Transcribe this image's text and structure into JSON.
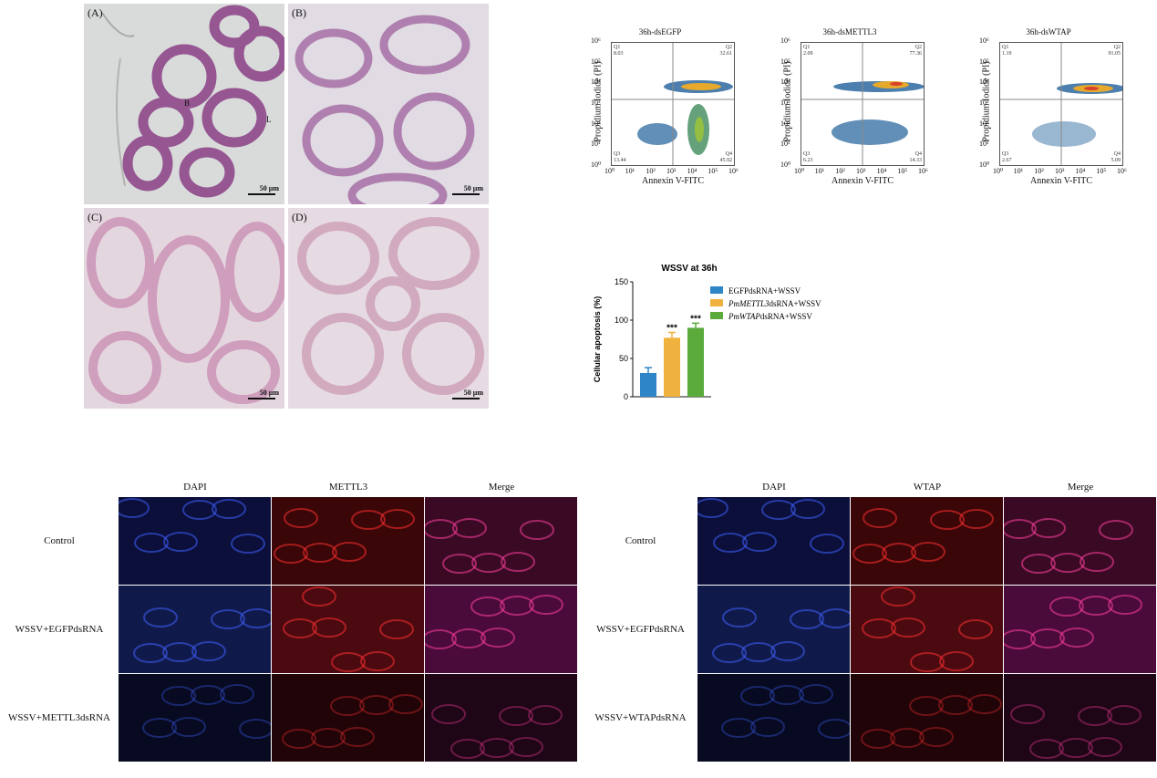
{
  "histology": {
    "panels": [
      {
        "label": "(A)",
        "scale": "50 μm",
        "annotations": [
          "B",
          "L"
        ]
      },
      {
        "label": "(B)",
        "scale": "50 μm"
      },
      {
        "label": "(C)",
        "scale": "50 μm"
      },
      {
        "label": "(D)",
        "scale": "50 μm"
      }
    ]
  },
  "flow": {
    "ylabel": "Propidium Iodide (PI)",
    "xlabel": "Annexin V-FITC",
    "ticks": [
      "10⁰",
      "10¹",
      "10²",
      "10³",
      "10⁴",
      "10⁵",
      "10⁶"
    ],
    "plots": [
      {
        "title": "36h-dsEGFP",
        "q1": "Q1",
        "q1v": "8.03",
        "q2": "Q2",
        "q2v": "32.61",
        "q3": "Q3",
        "q3v": "13.44",
        "q4": "Q4",
        "q4v": "45.92"
      },
      {
        "title": "36h-dsMETTL3",
        "q1": "Q1",
        "q1v": "2.09",
        "q2": "Q2",
        "q2v": "77.36",
        "q3": "Q3",
        "q3v": "6.23",
        "q4": "Q4",
        "q4v": "14.33"
      },
      {
        "title": "36h-dsWTAP",
        "q1": "Q1",
        "q1v": "1.19",
        "q2": "Q2",
        "q2v": "91.05",
        "q3": "Q3",
        "q3v": "2.67",
        "q4": "Q4",
        "q4v": "5.09"
      }
    ]
  },
  "chart_data": {
    "type": "bar",
    "title": "WSSV at 36h",
    "ylabel": "Cellular apoptosis (%)",
    "xlabel": "",
    "ylim": [
      0,
      150
    ],
    "yticks": [
      "0",
      "50",
      "100",
      "150"
    ],
    "categories": [
      "EGFPdsRNA+WSSV",
      "PmMETTL3dsRNA+WSSV",
      "PmWTAPdsRNA+WSSV"
    ],
    "values": [
      31,
      77,
      90
    ],
    "errors": [
      7,
      7,
      6
    ],
    "significance": [
      "",
      "***",
      "***"
    ],
    "colors": [
      "#2e86c8",
      "#f0b23e",
      "#5aaa3c"
    ],
    "legend": [
      {
        "italic": "",
        "rest": "EGFPdsRNA+WSSV"
      },
      {
        "italic": "PmMETTL3",
        "rest": "dsRNA+WSSV"
      },
      {
        "italic": "PmWTAP",
        "rest": "dsRNA+WSSV"
      }
    ],
    "legend_position": "right"
  },
  "fluor_left": {
    "columns": [
      "DAPI",
      "METTL3",
      "Merge"
    ],
    "rows": [
      "Control",
      "WSSV+EGFPdsRNA",
      "WSSV+METTL3dsRNA"
    ]
  },
  "fluor_right": {
    "columns": [
      "DAPI",
      "WTAP",
      "Merge"
    ],
    "rows": [
      "Control",
      "WSSV+EGFPdsRNA",
      "WSSV+WTAPdsRNA"
    ]
  }
}
